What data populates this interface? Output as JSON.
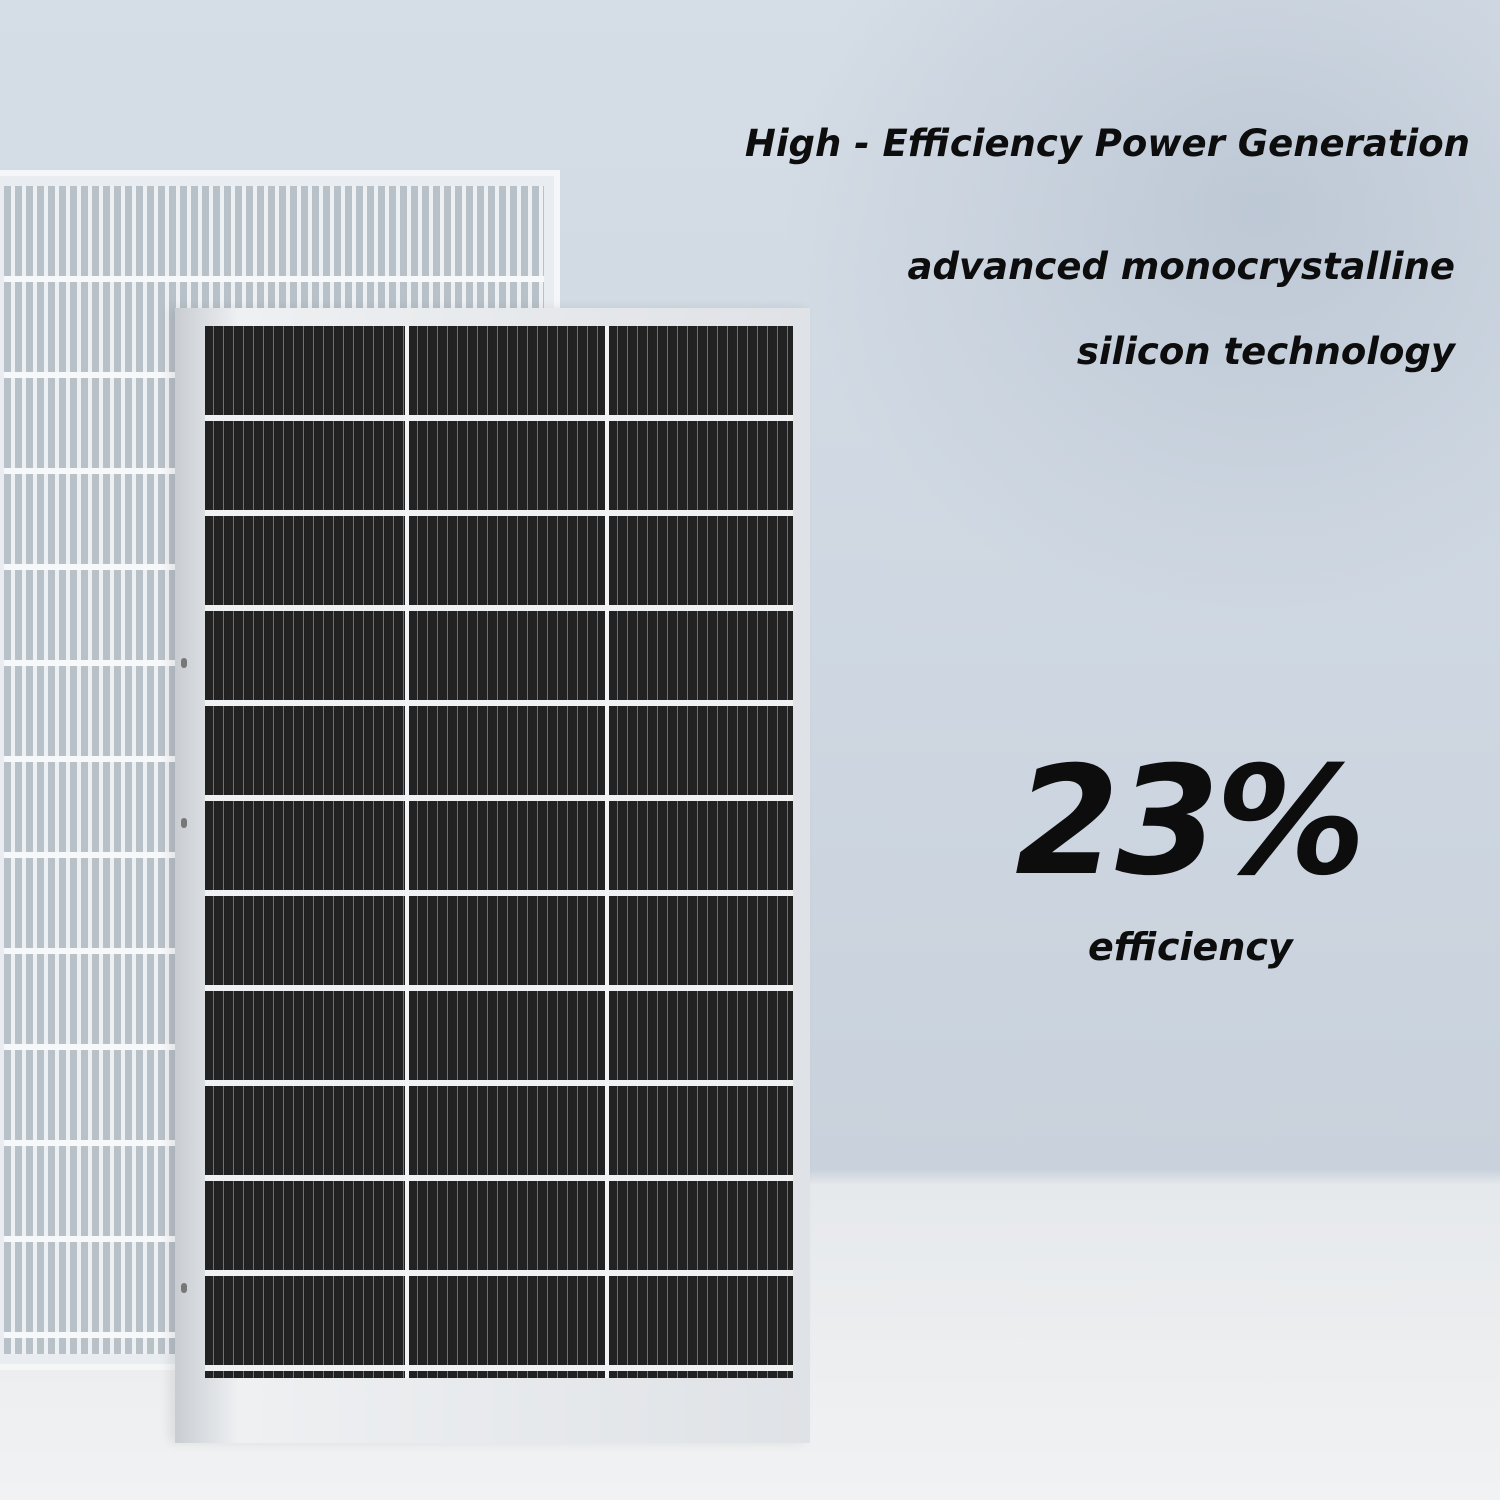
{
  "headline": "High - Efficiency Power Generation",
  "subline_1": "advanced monocrystalline",
  "subline_2": "silicon technology",
  "efficiency_value": "23%",
  "efficiency_label": "efficiency",
  "colors": {
    "background": "#cfd8e2",
    "text": "#0d0d0d",
    "cells": "#222222",
    "frame": "#e6e8ea"
  }
}
